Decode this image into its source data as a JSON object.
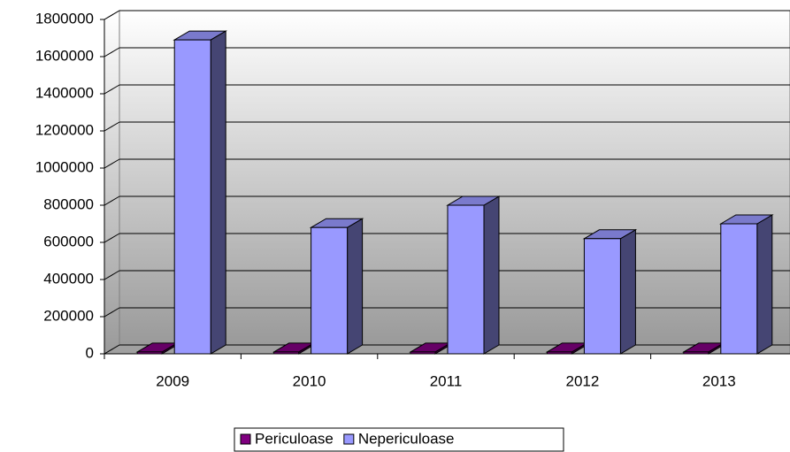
{
  "chart_data": {
    "type": "bar3d",
    "categories": [
      "2009",
      "2010",
      "2011",
      "2012",
      "2013"
    ],
    "series": [
      {
        "name": "Periculoase",
        "color": "#800080",
        "values": [
          10000,
          10000,
          10000,
          10000,
          10000
        ]
      },
      {
        "name": "Nepericuloase",
        "color": "#9999ff",
        "values": [
          1690000,
          680000,
          800000,
          620000,
          700000
        ]
      }
    ],
    "ylim": [
      0,
      1800000
    ],
    "yticks": [
      0,
      200000,
      400000,
      600000,
      800000,
      1000000,
      1200000,
      1400000,
      1600000,
      1800000
    ],
    "grid": true,
    "legend": "bottom"
  }
}
